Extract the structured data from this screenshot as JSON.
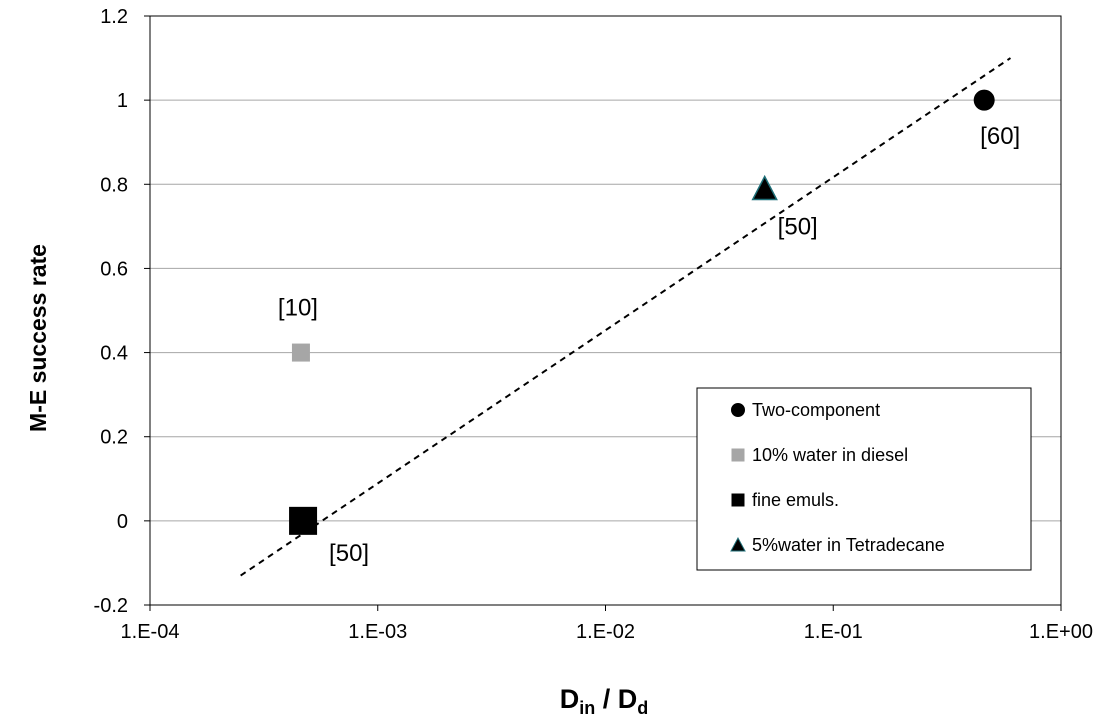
{
  "chart_data": {
    "type": "scatter",
    "x_scale": "log",
    "xlim": [
      0.0001,
      1
    ],
    "ylim": [
      -0.2,
      1.2
    ],
    "grid": true,
    "legend_position": "bottom-right",
    "xlabel": {
      "main": "D",
      "sub1": "in",
      "sep": " / D",
      "sub2": "d"
    },
    "ylabel": "M-E success rate",
    "x_ticks": [
      {
        "value": 0.0001,
        "label": "1.E-04"
      },
      {
        "value": 0.001,
        "label": "1.E-03"
      },
      {
        "value": 0.01,
        "label": "1.E-02"
      },
      {
        "value": 0.1,
        "label": "1.E-01"
      },
      {
        "value": 1,
        "label": "1.E+00"
      }
    ],
    "y_ticks": [
      {
        "value": -0.2,
        "label": "-0.2"
      },
      {
        "value": 0,
        "label": "0"
      },
      {
        "value": 0.2,
        "label": "0.2"
      },
      {
        "value": 0.4,
        "label": "0.4"
      },
      {
        "value": 0.6,
        "label": "0.6"
      },
      {
        "value": 0.8,
        "label": "0.8"
      },
      {
        "value": 1,
        "label": "1"
      },
      {
        "value": 1.2,
        "label": "1.2"
      }
    ],
    "series": [
      {
        "name": "Two-component",
        "marker": "circle",
        "color": "#000000",
        "stroke": "#000000",
        "points": [
          {
            "x": 0.46,
            "y": 1.0
          }
        ]
      },
      {
        "name": "10% water in diesel",
        "marker": "square",
        "color": "#a6a6a6",
        "stroke": "#a6a6a6",
        "points": [
          {
            "x": 0.00046,
            "y": 0.4
          }
        ]
      },
      {
        "name": "fine emuls.",
        "marker": "square-large",
        "color": "#000000",
        "stroke": "#000000",
        "points": [
          {
            "x": 0.00047,
            "y": 0.0
          }
        ]
      },
      {
        "name": "5%water in Tetradecane",
        "marker": "triangle",
        "color": "#000000",
        "stroke": "#1f6f78",
        "points": [
          {
            "x": 0.05,
            "y": 0.79
          }
        ]
      }
    ],
    "annotations": [
      {
        "text": "[60]",
        "x": 0.46,
        "y": 1.0
      },
      {
        "text": "[50]",
        "x": 0.05,
        "y": 0.79
      },
      {
        "text": "[10]",
        "x": 0.00046,
        "y": 0.4
      },
      {
        "text": "[50]",
        "x": 0.00047,
        "y": 0.0
      }
    ],
    "trendline": {
      "style": "dashed",
      "color": "#000000",
      "points": [
        {
          "x": 0.00025,
          "y": -0.13
        },
        {
          "x": 0.6,
          "y": 1.1
        }
      ]
    }
  }
}
